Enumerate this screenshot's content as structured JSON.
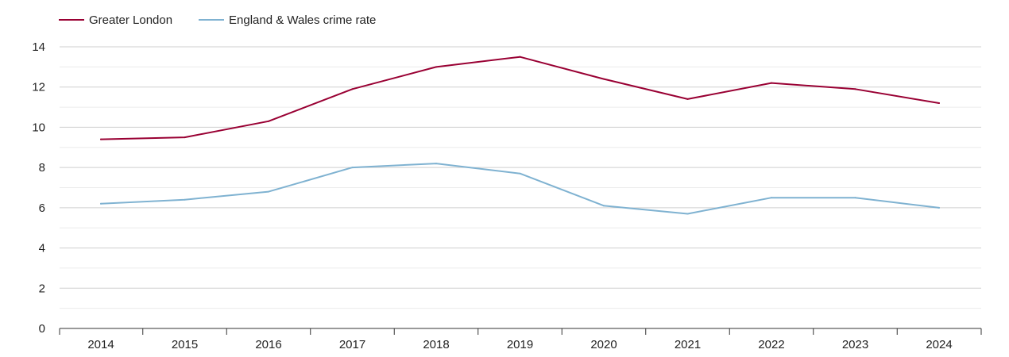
{
  "chart_data": {
    "type": "line",
    "x": [
      "2014",
      "2015",
      "2016",
      "2017",
      "2018",
      "2019",
      "2020",
      "2021",
      "2022",
      "2023",
      "2024"
    ],
    "series": [
      {
        "name": "Greater London",
        "color": "#990033",
        "values": [
          9.4,
          9.5,
          10.3,
          11.9,
          13.0,
          13.5,
          12.4,
          11.4,
          12.2,
          11.9,
          11.2
        ]
      },
      {
        "name": "England & Wales crime rate",
        "color": "#7fb2d1",
        "values": [
          6.2,
          6.4,
          6.8,
          8.0,
          8.2,
          7.7,
          6.1,
          5.7,
          6.5,
          6.5,
          6.0
        ]
      }
    ],
    "ylim": [
      0,
      14
    ],
    "yticks": [
      "0",
      "2",
      "4",
      "6",
      "8",
      "10",
      "12",
      "14"
    ],
    "grid": true,
    "legend_position": "top-left"
  }
}
